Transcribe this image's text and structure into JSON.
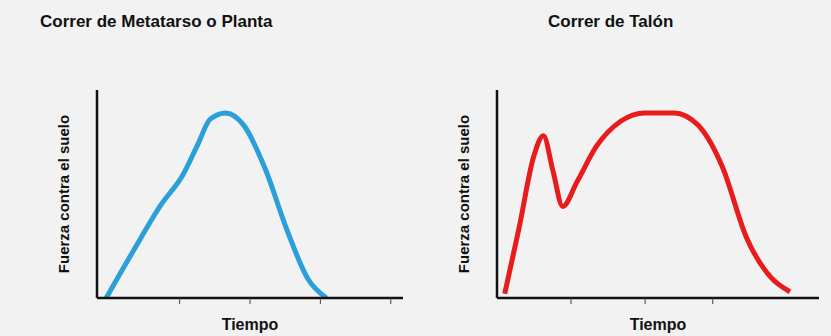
{
  "chart_data": [
    {
      "type": "line",
      "title": "Correr de Metatarso o Planta",
      "x_label": "Tiempo",
      "y_label": "Fuerza contra el suelo",
      "x": [
        0.3,
        1.2,
        2.1,
        2.8,
        3.3,
        3.7,
        4.2,
        4.8,
        5.5,
        6.2,
        6.9,
        7.5
      ],
      "values": [
        0,
        23,
        45,
        59,
        74,
        86,
        89,
        83,
        62,
        33,
        9,
        0
      ],
      "color": "#2a9fd8",
      "xlim": [
        0,
        10
      ],
      "ylim": [
        0,
        100
      ],
      "xticks": [
        2.7,
        5,
        7.3,
        9.6
      ],
      "tick_labels": false
    },
    {
      "type": "line",
      "title": "Correr de Talón",
      "x_label": "Tiempo",
      "y_label": "Fuerza contra el suelo",
      "x": [
        0.24,
        0.69,
        1.14,
        1.44,
        1.74,
        2.04,
        2.49,
        3.09,
        3.84,
        4.59,
        5.5,
        6.25,
        7.0,
        7.75,
        8.5,
        9.1
      ],
      "values": [
        2,
        34,
        68,
        78,
        61,
        44,
        56,
        73,
        85,
        89,
        89,
        83,
        63,
        29,
        10,
        3
      ],
      "color": "#e81c1c",
      "xlim": [
        0,
        10
      ],
      "ylim": [
        0,
        100
      ],
      "xticks": [
        2.3,
        4.6,
        6.7
      ],
      "tick_labels": false
    }
  ]
}
